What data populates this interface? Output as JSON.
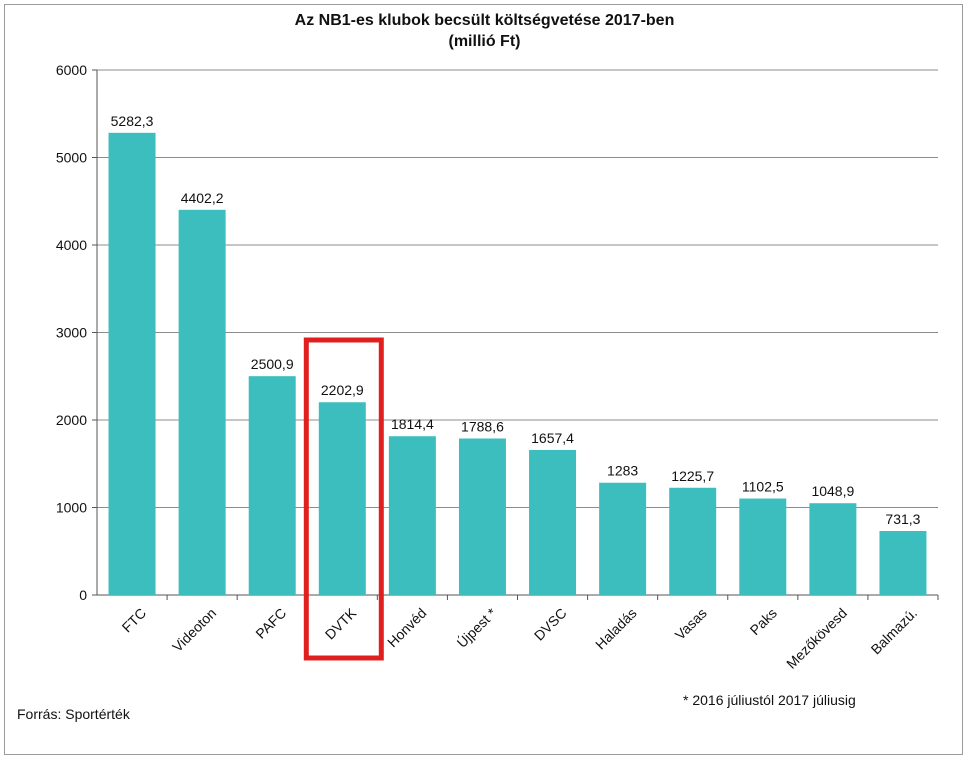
{
  "chart_data": {
    "type": "bar",
    "title": "Az NB1-es klubok becsült költségvetése 2017-ben",
    "subtitle": "(millió Ft)",
    "categories": [
      "FTC",
      "Videoton",
      "PAFC",
      "DVTK",
      "Honvéd",
      "Újpest *",
      "DVSC",
      "Haladás",
      "Vasas",
      "Paks",
      "Mezőkövesd",
      "Balmazú."
    ],
    "values": [
      5282.3,
      4402.2,
      2500.9,
      2202.9,
      1814.4,
      1788.6,
      1657.4,
      1283,
      1225.7,
      1102.5,
      1048.9,
      731.3
    ],
    "value_labels": [
      "5282,3",
      "4402,2",
      "2500,9",
      "2202,9",
      "1814,4",
      "1788,6",
      "1657,4",
      "1283",
      "1225,7",
      "1102,5",
      "1048,9",
      "731,3"
    ],
    "ylim": [
      0,
      6000
    ],
    "yticks": [
      0,
      1000,
      2000,
      3000,
      4000,
      5000,
      6000
    ],
    "grid": true,
    "bar_color": "#3DBEBE",
    "highlight": {
      "category": "DVTK",
      "color": "#E0201F"
    }
  },
  "source": "Forrás: Sportérték",
  "footnote": "* 2016 júliustól 2017 júliusig"
}
